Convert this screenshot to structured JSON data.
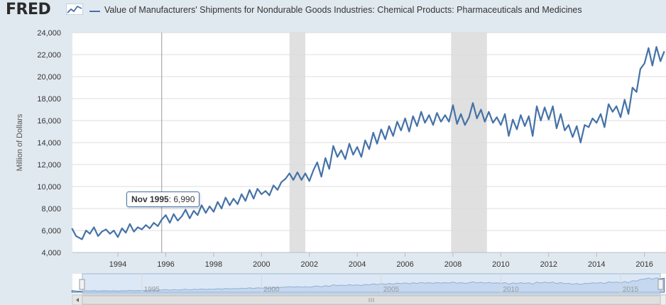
{
  "header": {
    "logo_text": "FRED",
    "legend_label": "Value of Manufacturers' Shipments for Nondurable Goods Industries: Chemical Products: Pharmaceuticals and Medicines"
  },
  "tooltip": {
    "date": "Nov 1995",
    "value": "6,990"
  },
  "colors": {
    "series": "#4572a7",
    "recession": "#e0e0e0",
    "navigator": "#c5d8ef"
  },
  "navigator": {
    "tick_labels": [
      "1995",
      "2000",
      "2005",
      "2010",
      "2015"
    ]
  },
  "chart_data": {
    "type": "line",
    "title": "",
    "xlabel": "",
    "ylabel": "Million of Dollars",
    "x_range": [
      1992.1,
      2016.9
    ],
    "ylim": [
      4000,
      24000
    ],
    "y_ticks": [
      4000,
      6000,
      8000,
      10000,
      12000,
      14000,
      16000,
      18000,
      20000,
      22000,
      24000
    ],
    "y_tick_labels": [
      "4,000",
      "6,000",
      "8,000",
      "10,000",
      "12,000",
      "14,000",
      "16,000",
      "18,000",
      "20,000",
      "22,000",
      "24,000"
    ],
    "x_ticks": [
      1994,
      1996,
      1998,
      2000,
      2002,
      2004,
      2006,
      2008,
      2010,
      2012,
      2014,
      2016
    ],
    "x_tick_labels": [
      "1994",
      "1996",
      "1998",
      "2000",
      "2002",
      "2004",
      "2006",
      "2008",
      "2010",
      "2012",
      "2014",
      "2016"
    ],
    "recessions": [
      [
        2001.17,
        2001.83
      ],
      [
        2007.92,
        2009.42
      ]
    ],
    "crosshair_x": 1995.83,
    "grid": true,
    "series": [
      {
        "name": "Value of Manufacturers' Shipments for Nondurable Goods Industries: Chemical Products: Pharmaceuticals and Medicines",
        "points": [
          [
            1992.08,
            6200
          ],
          [
            1992.25,
            5500
          ],
          [
            1992.5,
            5200
          ],
          [
            1992.67,
            6000
          ],
          [
            1992.83,
            5700
          ],
          [
            1993.0,
            6300
          ],
          [
            1993.17,
            5500
          ],
          [
            1993.33,
            5900
          ],
          [
            1993.5,
            6100
          ],
          [
            1993.67,
            5700
          ],
          [
            1993.83,
            6000
          ],
          [
            1994.0,
            5400
          ],
          [
            1994.17,
            6200
          ],
          [
            1994.33,
            5800
          ],
          [
            1994.5,
            6600
          ],
          [
            1994.67,
            5900
          ],
          [
            1994.83,
            6300
          ],
          [
            1995.0,
            6100
          ],
          [
            1995.17,
            6500
          ],
          [
            1995.33,
            6200
          ],
          [
            1995.5,
            6700
          ],
          [
            1995.67,
            6400
          ],
          [
            1995.83,
            6990
          ],
          [
            1996.0,
            7400
          ],
          [
            1996.17,
            6700
          ],
          [
            1996.33,
            7500
          ],
          [
            1996.5,
            6900
          ],
          [
            1996.67,
            7300
          ],
          [
            1996.83,
            7900
          ],
          [
            1997.0,
            7100
          ],
          [
            1997.17,
            7800
          ],
          [
            1997.33,
            7400
          ],
          [
            1997.5,
            8300
          ],
          [
            1997.67,
            7600
          ],
          [
            1997.83,
            8200
          ],
          [
            1998.0,
            7700
          ],
          [
            1998.17,
            8600
          ],
          [
            1998.33,
            8000
          ],
          [
            1998.5,
            9000
          ],
          [
            1998.67,
            8300
          ],
          [
            1998.83,
            8900
          ],
          [
            1999.0,
            8400
          ],
          [
            1999.17,
            9300
          ],
          [
            1999.33,
            8700
          ],
          [
            1999.5,
            9700
          ],
          [
            1999.67,
            8900
          ],
          [
            1999.83,
            9800
          ],
          [
            2000.0,
            9300
          ],
          [
            2000.17,
            9600
          ],
          [
            2000.33,
            9200
          ],
          [
            2000.5,
            10100
          ],
          [
            2000.67,
            9700
          ],
          [
            2000.83,
            10400
          ],
          [
            2001.0,
            10700
          ],
          [
            2001.17,
            11200
          ],
          [
            2001.33,
            10600
          ],
          [
            2001.5,
            11300
          ],
          [
            2001.67,
            10600
          ],
          [
            2001.83,
            11200
          ],
          [
            2002.0,
            10500
          ],
          [
            2002.17,
            11500
          ],
          [
            2002.33,
            12200
          ],
          [
            2002.5,
            10900
          ],
          [
            2002.67,
            12600
          ],
          [
            2002.83,
            11600
          ],
          [
            2003.0,
            13700
          ],
          [
            2003.17,
            12700
          ],
          [
            2003.33,
            13300
          ],
          [
            2003.5,
            12500
          ],
          [
            2003.67,
            13900
          ],
          [
            2003.83,
            12900
          ],
          [
            2004.0,
            13600
          ],
          [
            2004.17,
            12700
          ],
          [
            2004.33,
            14200
          ],
          [
            2004.5,
            13400
          ],
          [
            2004.67,
            14900
          ],
          [
            2004.83,
            13900
          ],
          [
            2005.0,
            15200
          ],
          [
            2005.17,
            14300
          ],
          [
            2005.33,
            15500
          ],
          [
            2005.5,
            14600
          ],
          [
            2005.67,
            15900
          ],
          [
            2005.83,
            15100
          ],
          [
            2006.0,
            16200
          ],
          [
            2006.17,
            15000
          ],
          [
            2006.33,
            16400
          ],
          [
            2006.5,
            15500
          ],
          [
            2006.67,
            16800
          ],
          [
            2006.83,
            15800
          ],
          [
            2007.0,
            16500
          ],
          [
            2007.17,
            15600
          ],
          [
            2007.33,
            16700
          ],
          [
            2007.5,
            15900
          ],
          [
            2007.67,
            16500
          ],
          [
            2007.83,
            15900
          ],
          [
            2008.0,
            17400
          ],
          [
            2008.17,
            15700
          ],
          [
            2008.33,
            16600
          ],
          [
            2008.5,
            15600
          ],
          [
            2008.67,
            16300
          ],
          [
            2008.83,
            17600
          ],
          [
            2009.0,
            16200
          ],
          [
            2009.17,
            17000
          ],
          [
            2009.33,
            15900
          ],
          [
            2009.5,
            16800
          ],
          [
            2009.67,
            15800
          ],
          [
            2009.83,
            16300
          ],
          [
            2010.0,
            15600
          ],
          [
            2010.17,
            16600
          ],
          [
            2010.33,
            14600
          ],
          [
            2010.5,
            16100
          ],
          [
            2010.67,
            15200
          ],
          [
            2010.83,
            16500
          ],
          [
            2011.0,
            15500
          ],
          [
            2011.17,
            16400
          ],
          [
            2011.33,
            14600
          ],
          [
            2011.5,
            17300
          ],
          [
            2011.67,
            16000
          ],
          [
            2011.83,
            17200
          ],
          [
            2012.0,
            16100
          ],
          [
            2012.17,
            17300
          ],
          [
            2012.33,
            15300
          ],
          [
            2012.5,
            16600
          ],
          [
            2012.67,
            15100
          ],
          [
            2012.83,
            15600
          ],
          [
            2013.0,
            14500
          ],
          [
            2013.17,
            15500
          ],
          [
            2013.33,
            14000
          ],
          [
            2013.5,
            15600
          ],
          [
            2013.67,
            15400
          ],
          [
            2013.83,
            16200
          ],
          [
            2014.0,
            15800
          ],
          [
            2014.17,
            16600
          ],
          [
            2014.33,
            15400
          ],
          [
            2014.5,
            17500
          ],
          [
            2014.67,
            16800
          ],
          [
            2014.83,
            17300
          ],
          [
            2015.0,
            16300
          ],
          [
            2015.17,
            17900
          ],
          [
            2015.33,
            16600
          ],
          [
            2015.5,
            19000
          ],
          [
            2015.67,
            18600
          ],
          [
            2015.83,
            20700
          ],
          [
            2016.0,
            21200
          ],
          [
            2016.17,
            22600
          ],
          [
            2016.33,
            21000
          ],
          [
            2016.5,
            22700
          ],
          [
            2016.67,
            21400
          ],
          [
            2016.83,
            22300
          ]
        ]
      }
    ]
  }
}
